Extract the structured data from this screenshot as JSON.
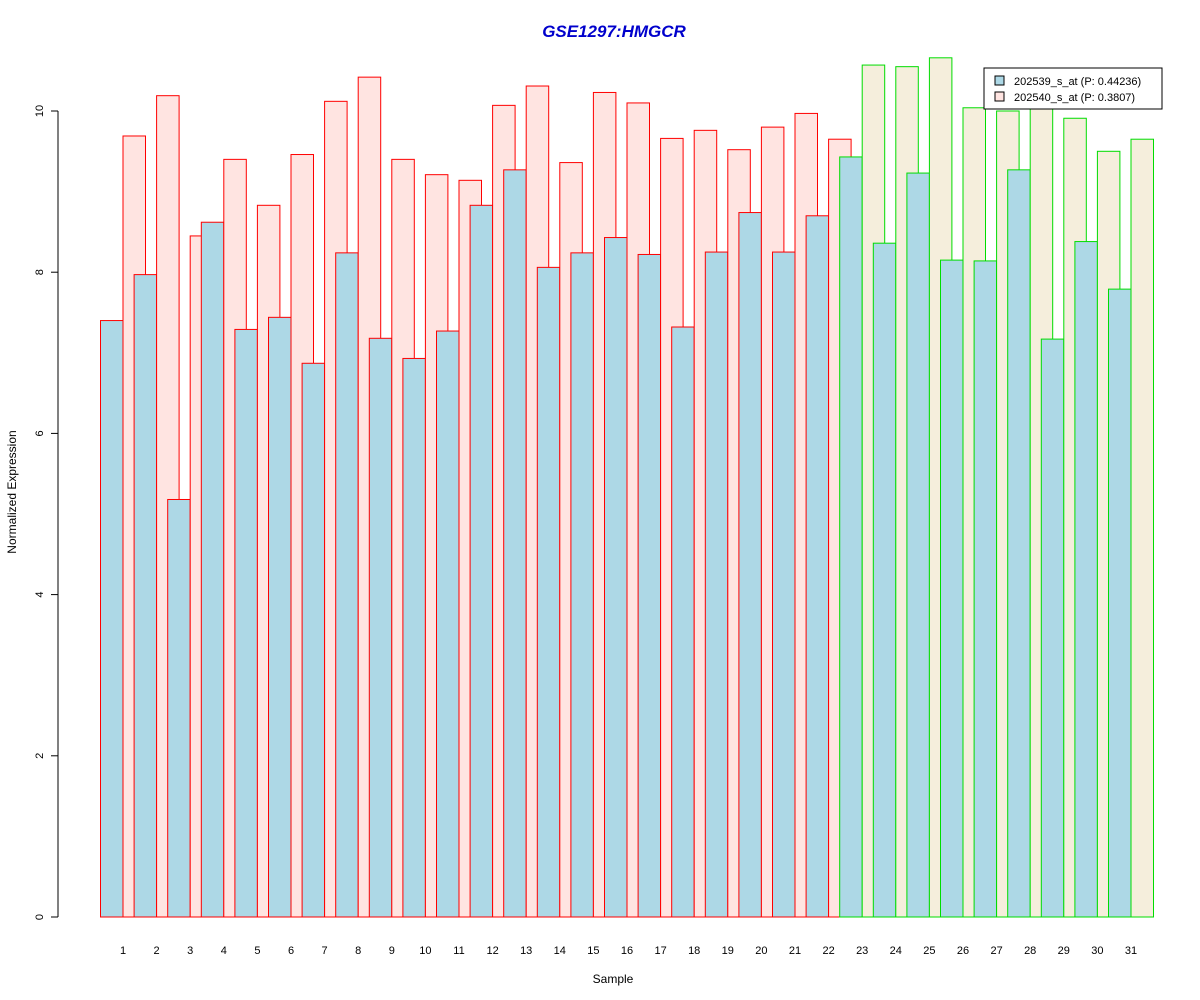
{
  "chart_data": {
    "type": "bar",
    "title": "GSE1297:HMGCR",
    "xlabel": "Sample",
    "ylabel": "Normalized Expression",
    "ylim": [
      0,
      10.6
    ],
    "yticks": [
      0,
      2,
      4,
      6,
      8,
      10
    ],
    "categories": [
      "1",
      "2",
      "3",
      "4",
      "5",
      "6",
      "7",
      "8",
      "9",
      "10",
      "11",
      "12",
      "13",
      "14",
      "15",
      "16",
      "17",
      "18",
      "19",
      "20",
      "21",
      "22",
      "23",
      "24",
      "25",
      "26",
      "27",
      "28",
      "29",
      "30",
      "31"
    ],
    "series": [
      {
        "name": "202539_s_at (P: 0.44236)",
        "fill": "#add8e6",
        "values": [
          7.4,
          7.97,
          5.18,
          8.62,
          7.29,
          7.44,
          6.87,
          8.24,
          7.18,
          6.93,
          7.27,
          8.83,
          9.27,
          8.06,
          8.24,
          8.43,
          8.22,
          7.32,
          8.25,
          8.74,
          8.25,
          8.7,
          9.43,
          8.36,
          9.23,
          8.15,
          8.14,
          9.27,
          7.17,
          8.38,
          7.79
        ]
      },
      {
        "name": "202540_s_at (P: 0.3807)",
        "fill_group1": "#ffe4e1",
        "fill_group2": "#f5eedc",
        "values": [
          9.69,
          10.19,
          8.45,
          9.4,
          8.83,
          9.46,
          10.12,
          10.42,
          9.4,
          9.21,
          9.14,
          10.07,
          10.31,
          9.36,
          10.23,
          10.1,
          9.66,
          9.76,
          9.52,
          9.8,
          9.97,
          9.65,
          10.57,
          10.55,
          10.66,
          10.04,
          10.0,
          10.14,
          9.91,
          9.5,
          9.65
        ]
      }
    ],
    "groups": [
      {
        "samples": [
          1,
          22
        ],
        "border_color": "#ff0000"
      },
      {
        "samples": [
          23,
          31
        ],
        "border_color": "#00dd00"
      }
    ],
    "legend_position": "top-right",
    "grid": false
  }
}
